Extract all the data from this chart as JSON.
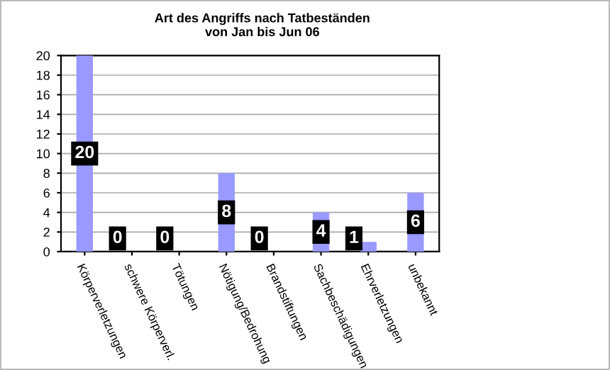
{
  "chart_data": {
    "type": "bar",
    "title": "Art des Angriffs nach Tatbeständen\nvon Jan bis Jun 06",
    "categories": [
      "Körperverletzungen",
      "schwere Körperverl.",
      "Tötungen",
      "Nötigung/Bedrohung",
      "Brandstiftungen",
      "Sachbeschädigungen",
      "Ehrverletzungen",
      "unbekannt"
    ],
    "values": [
      20,
      0,
      0,
      8,
      0,
      4,
      1,
      6
    ],
    "color": "#9999ff",
    "ylim": [
      0,
      20
    ],
    "yticks": [
      0,
      2,
      4,
      6,
      8,
      10,
      12,
      14,
      16,
      18,
      20
    ],
    "grid": "y",
    "data_labels": true
  }
}
